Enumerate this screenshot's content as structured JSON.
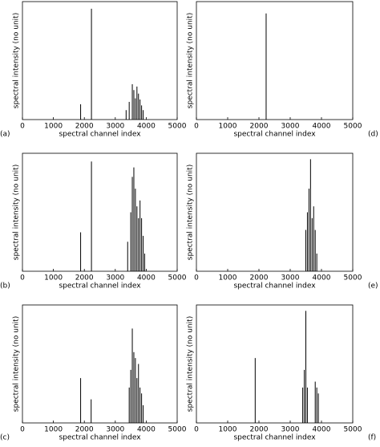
{
  "chart_data": [
    {
      "type": "stem",
      "label": "(a)",
      "xlabel": "spectral channel index",
      "ylabel": "spectral intensity (no unit)",
      "xlim": [
        0,
        5000
      ],
      "xticks": [
        0,
        1000,
        2000,
        3000,
        4000,
        5000
      ],
      "ylim": [
        0,
        1
      ],
      "x": [
        1880,
        2230,
        3350,
        3450,
        3550,
        3600,
        3650,
        3700,
        3750,
        3800,
        3850,
        3900
      ],
      "values": [
        0.13,
        0.94,
        0.08,
        0.15,
        0.3,
        0.25,
        0.18,
        0.28,
        0.22,
        0.17,
        0.12,
        0.08
      ]
    },
    {
      "type": "stem",
      "label": "(b)",
      "xlabel": "spectral channel index",
      "ylabel": "spectral intensity (no unit)",
      "xlim": [
        0,
        5000
      ],
      "xticks": [
        0,
        1000,
        2000,
        3000,
        4000,
        5000
      ],
      "ylim": [
        0,
        1
      ],
      "x": [
        1880,
        2230,
        3400,
        3500,
        3550,
        3600,
        3650,
        3700,
        3750,
        3800,
        3850,
        3900,
        3950
      ],
      "values": [
        0.33,
        0.93,
        0.25,
        0.5,
        0.8,
        0.88,
        0.7,
        0.55,
        0.45,
        0.6,
        0.45,
        0.3,
        0.15
      ]
    },
    {
      "type": "stem",
      "label": "(c)",
      "xlabel": "spectral channel index",
      "ylabel": "spectral intensity (no unit)",
      "xlim": [
        0,
        5000
      ],
      "xticks": [
        0,
        1000,
        2000,
        3000,
        4000,
        5000
      ],
      "ylim": [
        0,
        1
      ],
      "x": [
        1880,
        2220,
        3450,
        3500,
        3550,
        3600,
        3650,
        3700,
        3750,
        3800,
        3850,
        3900
      ],
      "values": [
        0.38,
        0.2,
        0.3,
        0.45,
        0.8,
        0.6,
        0.55,
        0.38,
        0.5,
        0.3,
        0.25,
        0.15
      ]
    },
    {
      "type": "stem",
      "label": "(d)",
      "xlabel": "spectral channel index",
      "ylabel": "spectral intensity (no unit)",
      "xlim": [
        0,
        5000
      ],
      "xticks": [
        0,
        1000,
        2000,
        3000,
        4000,
        5000
      ],
      "ylim": [
        0,
        1
      ],
      "x": [
        2230
      ],
      "values": [
        0.9
      ]
    },
    {
      "type": "stem",
      "label": "(e)",
      "xlabel": "spectral channel index",
      "ylabel": "spectral intensity (no unit)",
      "xlim": [
        0,
        5000
      ],
      "xticks": [
        0,
        1000,
        2000,
        3000,
        4000,
        5000
      ],
      "ylim": [
        0,
        1
      ],
      "x": [
        3500,
        3550,
        3600,
        3650,
        3700,
        3750,
        3800,
        3850
      ],
      "values": [
        0.35,
        0.5,
        0.7,
        0.95,
        0.45,
        0.55,
        0.35,
        0.15
      ]
    },
    {
      "type": "stem",
      "label": "(f)",
      "xlabel": "spectral channel index",
      "ylabel": "spectral intensity (no unit)",
      "xlim": [
        0,
        5000
      ],
      "xticks": [
        0,
        1000,
        2000,
        3000,
        4000,
        5000
      ],
      "ylim": [
        0,
        1
      ],
      "x": [
        1880,
        3400,
        3450,
        3500,
        3550,
        3800,
        3850,
        3900
      ],
      "values": [
        0.55,
        0.3,
        0.45,
        0.95,
        0.3,
        0.35,
        0.3,
        0.25
      ]
    }
  ]
}
